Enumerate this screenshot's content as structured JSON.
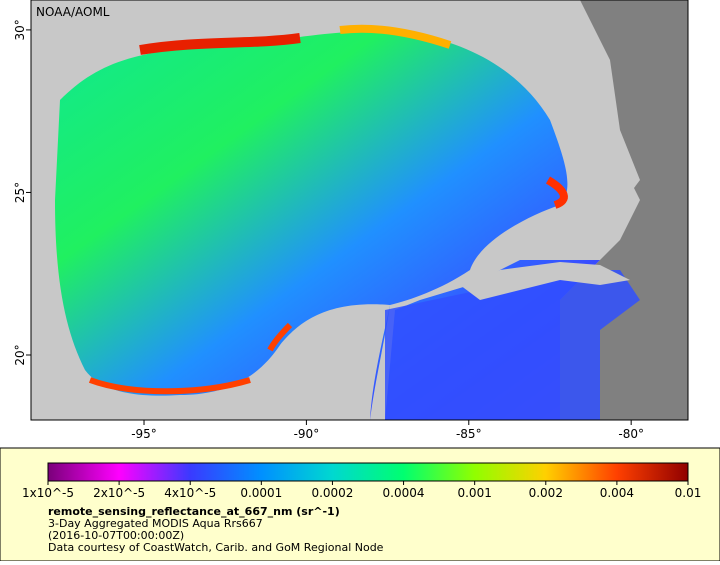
{
  "map": {
    "source": "NOAA/AOML",
    "lonlim": [
      -98.48,
      -78.25
    ],
    "latlim": [
      18.0,
      30.92
    ],
    "lon_ticks": [
      {
        "value": -95,
        "label": "-95°"
      },
      {
        "value": -90,
        "label": "-90°"
      },
      {
        "value": -85,
        "label": "-85°"
      },
      {
        "value": -80,
        "label": "-80°"
      }
    ],
    "lat_ticks": [
      {
        "value": 20,
        "label": "20°"
      },
      {
        "value": 25,
        "label": "25°"
      },
      {
        "value": 30,
        "label": "30°"
      }
    ]
  },
  "colorbar": {
    "labels": [
      "1x10^-5",
      "2x10^-5",
      "4x10^-5",
      "0.0001",
      "0.0002",
      "0.0004",
      "0.001",
      "0.002",
      "0.004",
      "0.01"
    ],
    "colors": [
      "#7a007a",
      "#ff00ff",
      "#3a3aff",
      "#0090ff",
      "#00d8d0",
      "#00ff70",
      "#90ff00",
      "#ffd000",
      "#ff4000",
      "#900000"
    ]
  },
  "caption": {
    "variable": "remote_sensing_reflectance_at_667_nm (sr^-1)",
    "product": "3-Day Aggregated MODIS Aqua Rrs667",
    "time": "(2016-10-07T00:00:00Z)",
    "credit": "Data courtesy of CoastWatch, Carib. and GoM Regional Node"
  }
}
